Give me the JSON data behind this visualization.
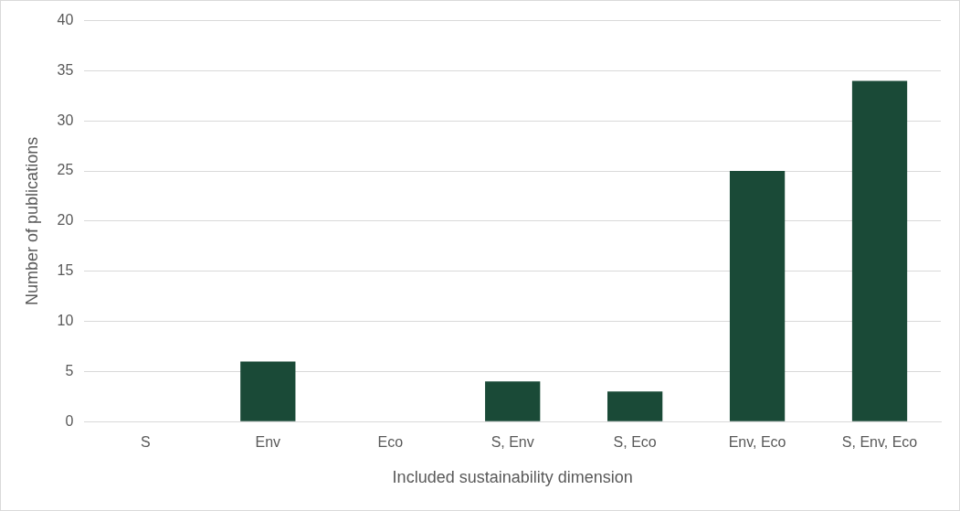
{
  "chart_data": {
    "type": "bar",
    "xlabel": "Included sustainability dimension",
    "ylabel": "Number of publications",
    "categories": [
      "S",
      "Env",
      "Eco",
      "S, Env",
      "S, Eco",
      "Env, Eco",
      "S, Env, Eco"
    ],
    "values": [
      0,
      6,
      0,
      4,
      3,
      25,
      34
    ],
    "color": "#1a4a37",
    "ylim": [
      0,
      40
    ],
    "yticks": [
      0,
      5,
      10,
      15,
      20,
      25,
      30,
      35,
      40
    ],
    "grid": "y",
    "legend": false
  }
}
